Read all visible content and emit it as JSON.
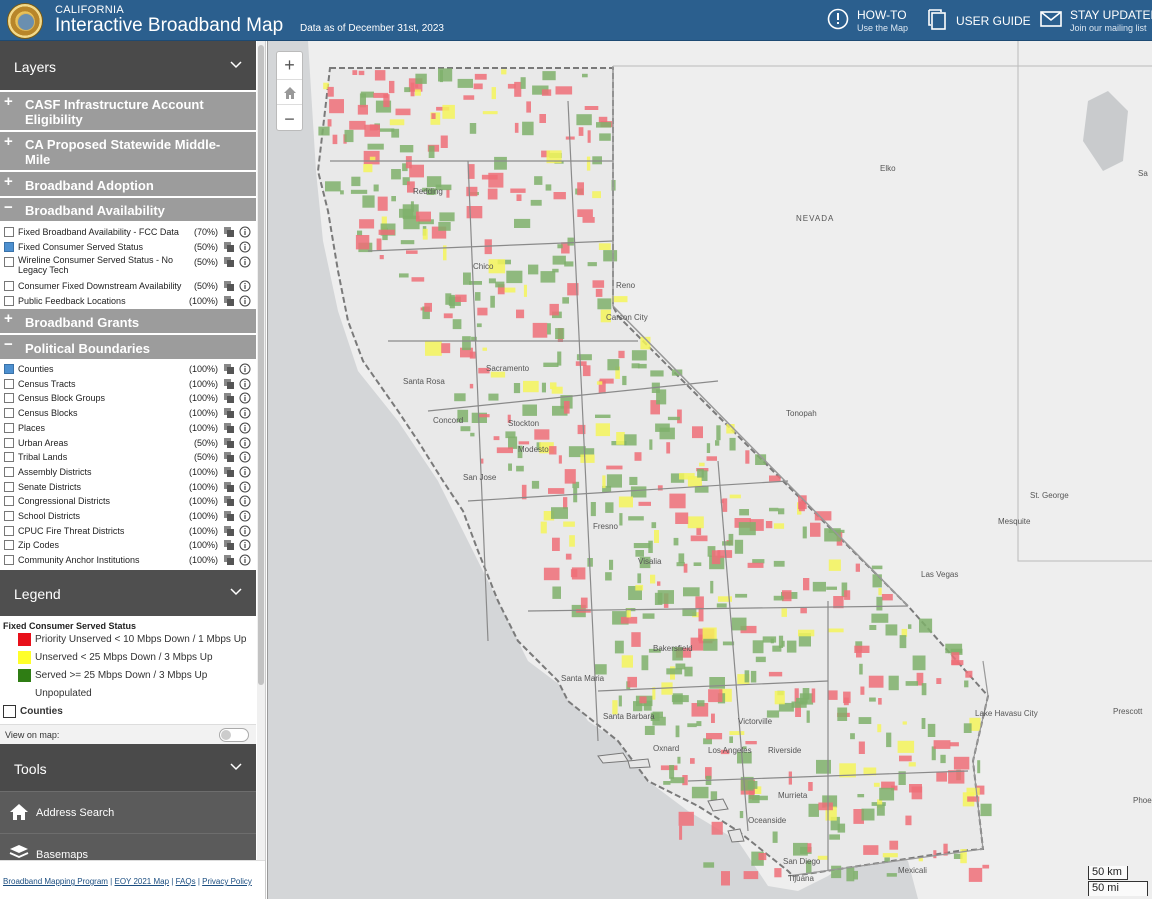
{
  "header": {
    "state": "CALIFORNIA",
    "title": "Interactive Broadband Map",
    "data_date": "Data as of December 31st, 2023",
    "buttons": [
      {
        "label": "HOW-TO",
        "sub": "Use the Map",
        "icon": "info-circle-icon"
      },
      {
        "label": "USER GUIDE",
        "sub": "",
        "icon": "document-icon"
      },
      {
        "label": "STAY UPDATED",
        "sub": "Join our mailing list",
        "icon": "envelope-icon"
      }
    ]
  },
  "layers": {
    "title": "Layers",
    "groups": {
      "casf": "CASF Infrastructure Account Eligibility",
      "middle_mile": "CA Proposed Statewide Middle-Mile",
      "adoption": "Broadband Adoption",
      "availability": "Broadband Availability",
      "grants": "Broadband Grants",
      "political": "Political Boundaries"
    },
    "availability_items": [
      {
        "label": "Fixed Broadband Availability - FCC Data",
        "pct": "(70%)",
        "checked": false
      },
      {
        "label": "Fixed Consumer Served Status",
        "pct": "(50%)",
        "checked": true
      },
      {
        "label": "Wireline Consumer Served Status - No Legacy Tech",
        "pct": "(50%)",
        "checked": false
      },
      {
        "label": "Consumer Fixed Downstream Availability",
        "pct": "(50%)",
        "checked": false
      },
      {
        "label": "Public Feedback Locations",
        "pct": "(100%)",
        "checked": false
      }
    ],
    "political_items": [
      {
        "label": "Counties",
        "pct": "(100%)",
        "checked": true
      },
      {
        "label": "Census Tracts",
        "pct": "(100%)",
        "checked": false
      },
      {
        "label": "Census Block Groups",
        "pct": "(100%)",
        "checked": false
      },
      {
        "label": "Census Blocks",
        "pct": "(100%)",
        "checked": false
      },
      {
        "label": "Places",
        "pct": "(100%)",
        "checked": false
      },
      {
        "label": "Urban Areas",
        "pct": "(50%)",
        "checked": false
      },
      {
        "label": "Tribal Lands",
        "pct": "(50%)",
        "checked": false
      },
      {
        "label": "Assembly Districts",
        "pct": "(100%)",
        "checked": false
      },
      {
        "label": "Senate Districts",
        "pct": "(100%)",
        "checked": false
      },
      {
        "label": "Congressional Districts",
        "pct": "(100%)",
        "checked": false
      },
      {
        "label": "School Districts",
        "pct": "(100%)",
        "checked": false
      },
      {
        "label": "CPUC Fire Threat Districts",
        "pct": "(100%)",
        "checked": false
      },
      {
        "label": "Zip Codes",
        "pct": "(100%)",
        "checked": false
      },
      {
        "label": "Community Anchor Institutions",
        "pct": "(100%)",
        "checked": false
      }
    ]
  },
  "legend": {
    "title": "Legend",
    "section": "Fixed Consumer Served Status",
    "items": [
      {
        "label": "Priority Unserved < 10 Mbps Down / 1 Mbps Up",
        "color": "#e8101a"
      },
      {
        "label": "Unserved < 25 Mbps Down / 3 Mbps Up",
        "color": "#ffff2a"
      },
      {
        "label": "Served >= 25 Mbps Down / 3 Mbps Up",
        "color": "#2f7d14"
      },
      {
        "label": "Unpopulated",
        "color": ""
      }
    ],
    "counties_label": "Counties",
    "view_on_map": "View on map:"
  },
  "tools": {
    "title": "Tools",
    "items": [
      {
        "label": "Address Search",
        "icon": "home-icon"
      },
      {
        "label": "Basemaps",
        "icon": "layers-stack-icon"
      }
    ]
  },
  "footer": {
    "links": [
      "Broadband Mapping Program",
      "EOY 2021 Map",
      "FAQs",
      "Privacy Policy"
    ]
  },
  "map": {
    "zoom_in": "+",
    "zoom_out": "−",
    "state_label": "NEVADA",
    "cities": [
      "Elko",
      "Reno",
      "Carson City",
      "Tonopah",
      "St. George",
      "Mesquite",
      "Las Vegas",
      "Lake Havasu City",
      "Prescott",
      "Redding",
      "Chico",
      "Sacramento",
      "Santa Rosa",
      "Concord",
      "Stockton",
      "Modesto",
      "San Jose",
      "Fresno",
      "Visalia",
      "Bakersfield",
      "Santa Maria",
      "Santa Barbara",
      "Oxnard",
      "Los Angeles",
      "Victorville",
      "Riverside",
      "Murrieta",
      "Oceanside",
      "San Diego",
      "Tijuana",
      "Mexicali",
      "Phoe",
      "Sa"
    ],
    "scale_km": "50 km",
    "scale_mi": "50 mi"
  }
}
